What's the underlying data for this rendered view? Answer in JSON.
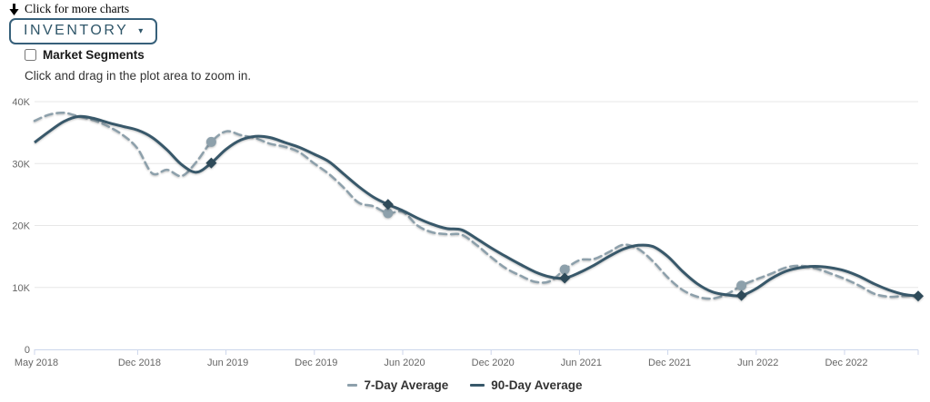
{
  "page": {
    "more_charts": {
      "label": "Click for more charts",
      "icon": "down-arrow-icon"
    },
    "selector": {
      "label": "Inventory",
      "caret_icon": "caret-down-icon",
      "caret_glyph": "▾"
    },
    "market_segments": {
      "label": "Market Segments",
      "checked": false
    },
    "hint": "Click and drag in the plot area to zoom in."
  },
  "colors": {
    "accent": "#2f5669",
    "series_7day": "#8da0ab",
    "series_90day": "#38586a",
    "marker_diamond": "#2e4a59",
    "grid": "#e7e7e7",
    "axis": "#ccd6eb",
    "tick_text": "#666666",
    "legend_text": "#333333"
  },
  "chart_data": {
    "type": "line",
    "title": "",
    "xlabel": "",
    "ylabel": "",
    "values_unit": "thousands",
    "grid": "horizontal",
    "x_axis": {
      "tick_labels": [
        "May 2018",
        "Dec 2018",
        "Jun 2019",
        "Dec 2019",
        "Jun 2020",
        "Dec 2020",
        "Jun 2021",
        "Dec 2021",
        "Jun 2022",
        "Dec 2022"
      ],
      "tick_indices": [
        0,
        7,
        13,
        19,
        25,
        31,
        37,
        43,
        49,
        55
      ],
      "months": [
        "2018-05",
        "2018-06",
        "2018-07",
        "2018-08",
        "2018-09",
        "2018-10",
        "2018-11",
        "2018-12",
        "2019-01",
        "2019-02",
        "2019-03",
        "2019-04",
        "2019-05",
        "2019-06",
        "2019-07",
        "2019-08",
        "2019-09",
        "2019-10",
        "2019-11",
        "2019-12",
        "2020-01",
        "2020-02",
        "2020-03",
        "2020-04",
        "2020-05",
        "2020-06",
        "2020-07",
        "2020-08",
        "2020-09",
        "2020-10",
        "2020-11",
        "2020-12",
        "2021-01",
        "2021-02",
        "2021-03",
        "2021-04",
        "2021-05",
        "2021-06",
        "2021-07",
        "2021-08",
        "2021-09",
        "2021-10",
        "2021-11",
        "2021-12",
        "2022-01",
        "2022-02",
        "2022-03",
        "2022-04",
        "2022-05",
        "2022-06",
        "2022-07",
        "2022-08",
        "2022-09",
        "2022-10",
        "2022-11",
        "2022-12",
        "2023-01",
        "2023-02",
        "2023-03",
        "2023-04",
        "2023-05"
      ]
    },
    "y_axis": {
      "tick_labels": [
        "0",
        "10K",
        "20K",
        "30K",
        "40K"
      ],
      "min": 0,
      "max": 40000
    },
    "legend": {
      "position": "bottom-center",
      "items": [
        "7-Day Average",
        "90-Day Average"
      ]
    },
    "series": [
      {
        "name": "7-Day Average",
        "style": "dashed",
        "color": "#8da0ab",
        "marker": "circle",
        "marker_color": "#8da0ab",
        "marker_indices": [
          12,
          24,
          36,
          48
        ],
        "values": [
          36.9,
          37.9,
          38.2,
          37.6,
          37.0,
          36.0,
          34.6,
          32.4,
          28.4,
          29.0,
          28.0,
          30.3,
          33.5,
          35.2,
          34.6,
          34.1,
          33.2,
          32.7,
          31.8,
          30.0,
          28.3,
          26.1,
          23.7,
          23.1,
          22.0,
          22.2,
          20.0,
          18.9,
          18.6,
          18.5,
          16.9,
          14.9,
          13.1,
          11.9,
          10.9,
          11.0,
          12.9,
          14.4,
          14.6,
          15.7,
          16.9,
          16.2,
          14.2,
          11.6,
          9.6,
          8.5,
          8.2,
          8.9,
          10.3,
          11.3,
          12.2,
          13.2,
          13.5,
          13.1,
          12.3,
          11.4,
          10.3,
          9.0,
          8.5,
          8.6,
          8.8
        ]
      },
      {
        "name": "90-Day Average",
        "style": "solid",
        "color": "#38586a",
        "marker": "diamond",
        "marker_color": "#2e4a59",
        "marker_indices": [
          12,
          24,
          36,
          48,
          60
        ],
        "values": [
          33.4,
          35.2,
          36.8,
          37.6,
          37.3,
          36.6,
          36.0,
          35.4,
          34.2,
          32.2,
          29.8,
          28.6,
          30.1,
          32.3,
          33.8,
          34.4,
          34.2,
          33.4,
          32.6,
          31.5,
          30.3,
          28.3,
          26.3,
          24.6,
          23.4,
          22.4,
          21.2,
          20.2,
          19.5,
          19.3,
          17.9,
          16.4,
          15.0,
          13.7,
          12.5,
          11.7,
          11.5,
          12.4,
          13.6,
          15.0,
          16.2,
          16.8,
          16.6,
          15.0,
          12.6,
          10.6,
          9.3,
          8.8,
          8.7,
          9.8,
          11.4,
          12.6,
          13.2,
          13.4,
          13.2,
          12.7,
          11.8,
          10.6,
          9.6,
          8.9,
          8.6
        ]
      }
    ]
  }
}
